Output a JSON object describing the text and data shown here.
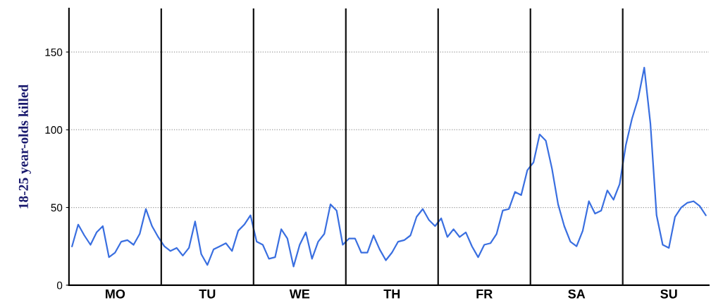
{
  "chart_data": {
    "type": "line",
    "ylabel": "18-25 year-olds killed",
    "categories": [
      null,
      null,
      null,
      null,
      null,
      null,
      null,
      "MO",
      null,
      null,
      null,
      null,
      null,
      null,
      null,
      null,
      null,
      null,
      null,
      null,
      null,
      null,
      "TU",
      null,
      null,
      null,
      null,
      null,
      null,
      null,
      null,
      null,
      null,
      null,
      null,
      null,
      null,
      "WE",
      null,
      null,
      null,
      null,
      null,
      null,
      null,
      null,
      null,
      null,
      null,
      null,
      null,
      null,
      "TH",
      null,
      null,
      null,
      null,
      null,
      null,
      null,
      null,
      null,
      null,
      null,
      null,
      null,
      null,
      "FR",
      null,
      null,
      null,
      null,
      null,
      null,
      null,
      null,
      null,
      null,
      null,
      null,
      null,
      null,
      "SA",
      null,
      null,
      null,
      null,
      null,
      null,
      null,
      null,
      null,
      null,
      null,
      null,
      null,
      null,
      "SU",
      null,
      null,
      null,
      null,
      null,
      null
    ],
    "series": [
      {
        "color": "#3a6fe0",
        "values": [
          25,
          39,
          32,
          26,
          34,
          38,
          18,
          21,
          28,
          29,
          26,
          33,
          49,
          38,
          31,
          25,
          22,
          24,
          19,
          24,
          41,
          20,
          13,
          23,
          25,
          27,
          22,
          35,
          39,
          45,
          28,
          26,
          17,
          18,
          36,
          30,
          12,
          26,
          34,
          17,
          28,
          33,
          52,
          48,
          26,
          30,
          30,
          21,
          21,
          32,
          23,
          16,
          21,
          28,
          29,
          32,
          44,
          49,
          42,
          38,
          43,
          31,
          36,
          31,
          34,
          25,
          18,
          26,
          27,
          33,
          48,
          49,
          60,
          58,
          74,
          79,
          97,
          93,
          75,
          52,
          38,
          28,
          25,
          35,
          54,
          46,
          48,
          61,
          55,
          65,
          90,
          107,
          120,
          140,
          104,
          45,
          26,
          24,
          44,
          50,
          53,
          54,
          51,
          45
        ]
      }
    ],
    "ylim": [
      0,
      178
    ],
    "yticks": [
      0,
      50,
      100,
      150
    ],
    "grid": "y",
    "marker": "none",
    "line_style": "solid",
    "legend": false
  }
}
